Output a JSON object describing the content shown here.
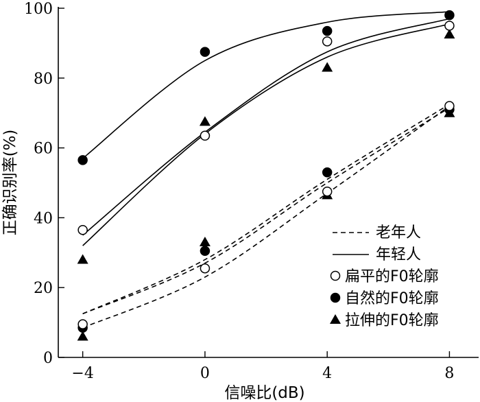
{
  "chart_data": {
    "type": "scatter",
    "title": "",
    "xlabel": "信噪比(dB)",
    "ylabel": "正确识别率(%)",
    "xlim": [
      -4.8,
      9.0
    ],
    "ylim": [
      0,
      100
    ],
    "x_ticks": [
      -4,
      0,
      4,
      8
    ],
    "x_tick_labels": [
      "−4",
      "0",
      "4",
      "8"
    ],
    "y_ticks": [
      0,
      20,
      40,
      60,
      80,
      100
    ],
    "y_tick_labels": [
      "0",
      "20",
      "40",
      "60",
      "80",
      "100"
    ],
    "x": [
      -4,
      0,
      4,
      8
    ],
    "series": [
      {
        "name": "扁平的F0轮廓",
        "marker": "circle-open",
        "group": "老年人",
        "values": [
          9.5,
          25.5,
          47.5,
          72.0
        ]
      },
      {
        "name": "自然的F0轮廓",
        "marker": "circle-filled",
        "group": "老年人",
        "values": [
          8.5,
          30.5,
          53.0,
          71.0
        ]
      },
      {
        "name": "拉伸的F0轮廓",
        "marker": "triangle",
        "group": "老年人",
        "values": [
          6.0,
          33.0,
          46.5,
          70.0
        ]
      },
      {
        "name": "扁平的F0轮廓",
        "marker": "circle-open",
        "group": "年轻人",
        "values": [
          36.5,
          63.5,
          90.5,
          95.0
        ]
      },
      {
        "name": "自然的F0轮廓",
        "marker": "circle-filled",
        "group": "年轻人",
        "values": [
          56.5,
          87.5,
          93.5,
          98.0
        ]
      },
      {
        "name": "拉伸的F0轮廓",
        "marker": "triangle",
        "group": "年轻人",
        "values": [
          28.0,
          67.5,
          83.0,
          92.5
        ]
      }
    ],
    "fit_curves": [
      {
        "group": "老年人",
        "style": "dashed",
        "x": [
          -4,
          0,
          4,
          8
        ],
        "values": [
          8.5,
          23.0,
          47.0,
          72.0
        ]
      },
      {
        "group": "老年人",
        "style": "dashed",
        "x": [
          -4,
          0,
          4,
          8
        ],
        "values": [
          12.5,
          28.0,
          51.0,
          72.5
        ]
      },
      {
        "group": "老年人",
        "style": "dashed",
        "x": [
          -4,
          0,
          4,
          8
        ],
        "values": [
          12.5,
          27.0,
          50.0,
          71.5
        ]
      },
      {
        "group": "年轻人",
        "style": "solid",
        "x": [
          -4,
          0,
          4,
          8
        ],
        "values": [
          35.0,
          64.5,
          87.5,
          97.0
        ]
      },
      {
        "group": "年轻人",
        "style": "solid",
        "x": [
          -4,
          0,
          4,
          8
        ],
        "values": [
          57.0,
          85.0,
          96.0,
          99.0
        ]
      },
      {
        "group": "年轻人",
        "style": "solid",
        "x": [
          -4,
          0,
          4,
          8
        ],
        "values": [
          32.0,
          64.0,
          86.0,
          95.5
        ]
      }
    ],
    "legend": {
      "placement": "bottom-right",
      "entries": [
        {
          "label": "老年人",
          "kind": "line",
          "style": "dashed"
        },
        {
          "label": "年轻人",
          "kind": "line",
          "style": "solid"
        },
        {
          "label": "扁平的F0轮廓",
          "kind": "marker",
          "marker": "circle-open"
        },
        {
          "label": "自然的F0轮廓",
          "kind": "marker",
          "marker": "circle-filled"
        },
        {
          "label": "拉伸的F0轮廓",
          "kind": "marker",
          "marker": "triangle"
        }
      ]
    },
    "grid": false
  }
}
